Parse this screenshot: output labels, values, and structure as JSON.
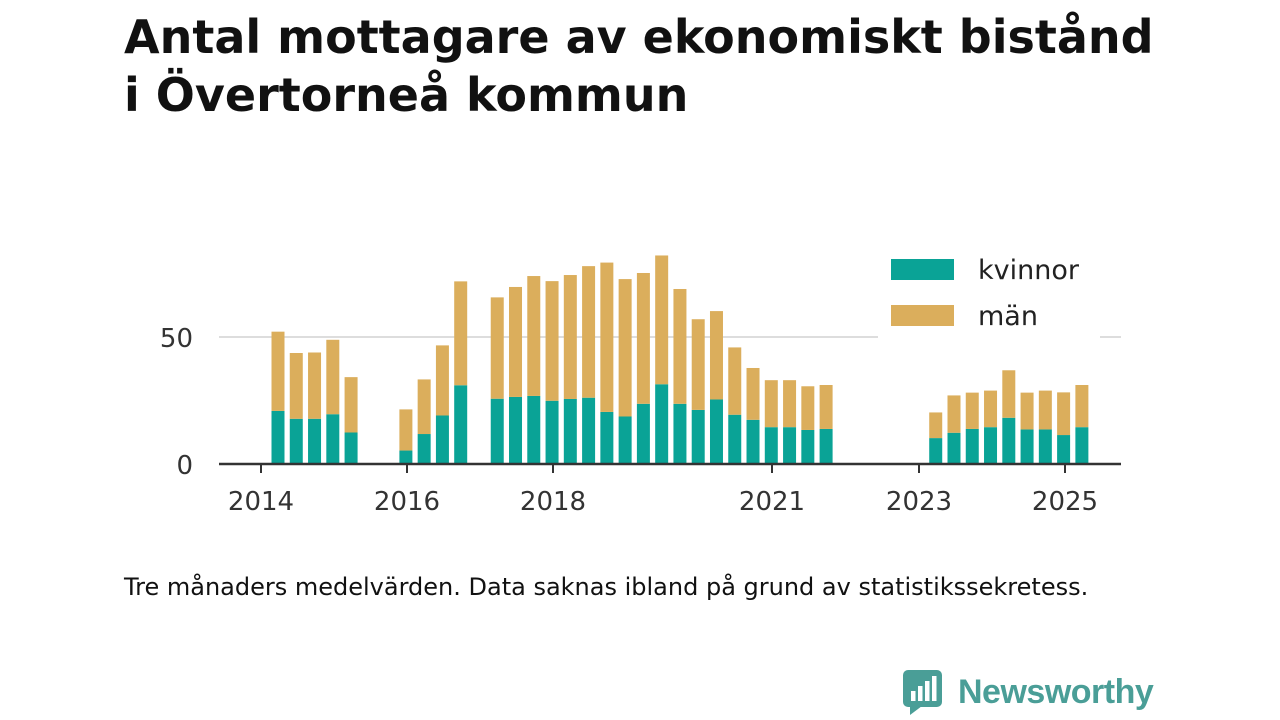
{
  "title_line1": "Antal mottagare av ekonomiskt bistånd",
  "title_line2": "i Övertorneå kommun",
  "note": "Tre månaders medelvärden. Data saknas ibland på grund av statistikssekretess.",
  "brand": "Newsworthy",
  "colors": {
    "kvinnor": "#0aa396",
    "man": "#dbae5c",
    "axis": "#333333",
    "grid": "#dddddd",
    "brand": "#4a9e97"
  },
  "chart_data": {
    "type": "bar",
    "stacked": true,
    "x_tick_labels": [
      "2014",
      "2016",
      "2018",
      "2021",
      "2023",
      "2025"
    ],
    "y_tick_labels": [
      "0",
      "50"
    ],
    "ylim": [
      0,
      90
    ],
    "legend_position": "top-right",
    "series": [
      {
        "name": "kvinnor",
        "values": [
          20.9,
          17.8,
          17.8,
          19.6,
          12.4,
          null,
          null,
          5.3,
          11.8,
          19.1,
          31,
          null,
          25.7,
          26.4,
          26.8,
          24.9,
          25.6,
          26.1,
          20.5,
          18.7,
          23.7,
          31.4,
          23.7,
          21.3,
          25.4,
          19.4,
          17.4,
          14.5,
          14.5,
          13.4,
          13.8,
          null,
          null,
          null,
          null,
          null,
          10.2,
          12.3,
          13.8,
          14.5,
          18.2,
          13.6,
          13.6,
          11.4,
          14.5
        ]
      },
      {
        "name": "män",
        "values": [
          31.2,
          25.9,
          26.1,
          29.3,
          21.8,
          null,
          null,
          16.2,
          21.5,
          27.6,
          40.9,
          null,
          39.9,
          43.3,
          47.2,
          47.1,
          48.8,
          51.8,
          58.8,
          54.1,
          51.5,
          50.7,
          45.2,
          35.7,
          34.8,
          26.5,
          20.4,
          18.5,
          18.5,
          17.2,
          17.3,
          null,
          null,
          null,
          null,
          null,
          10.1,
          14.7,
          14.3,
          14.4,
          18.7,
          14.5,
          15.3,
          16.8,
          16.6
        ]
      }
    ]
  }
}
